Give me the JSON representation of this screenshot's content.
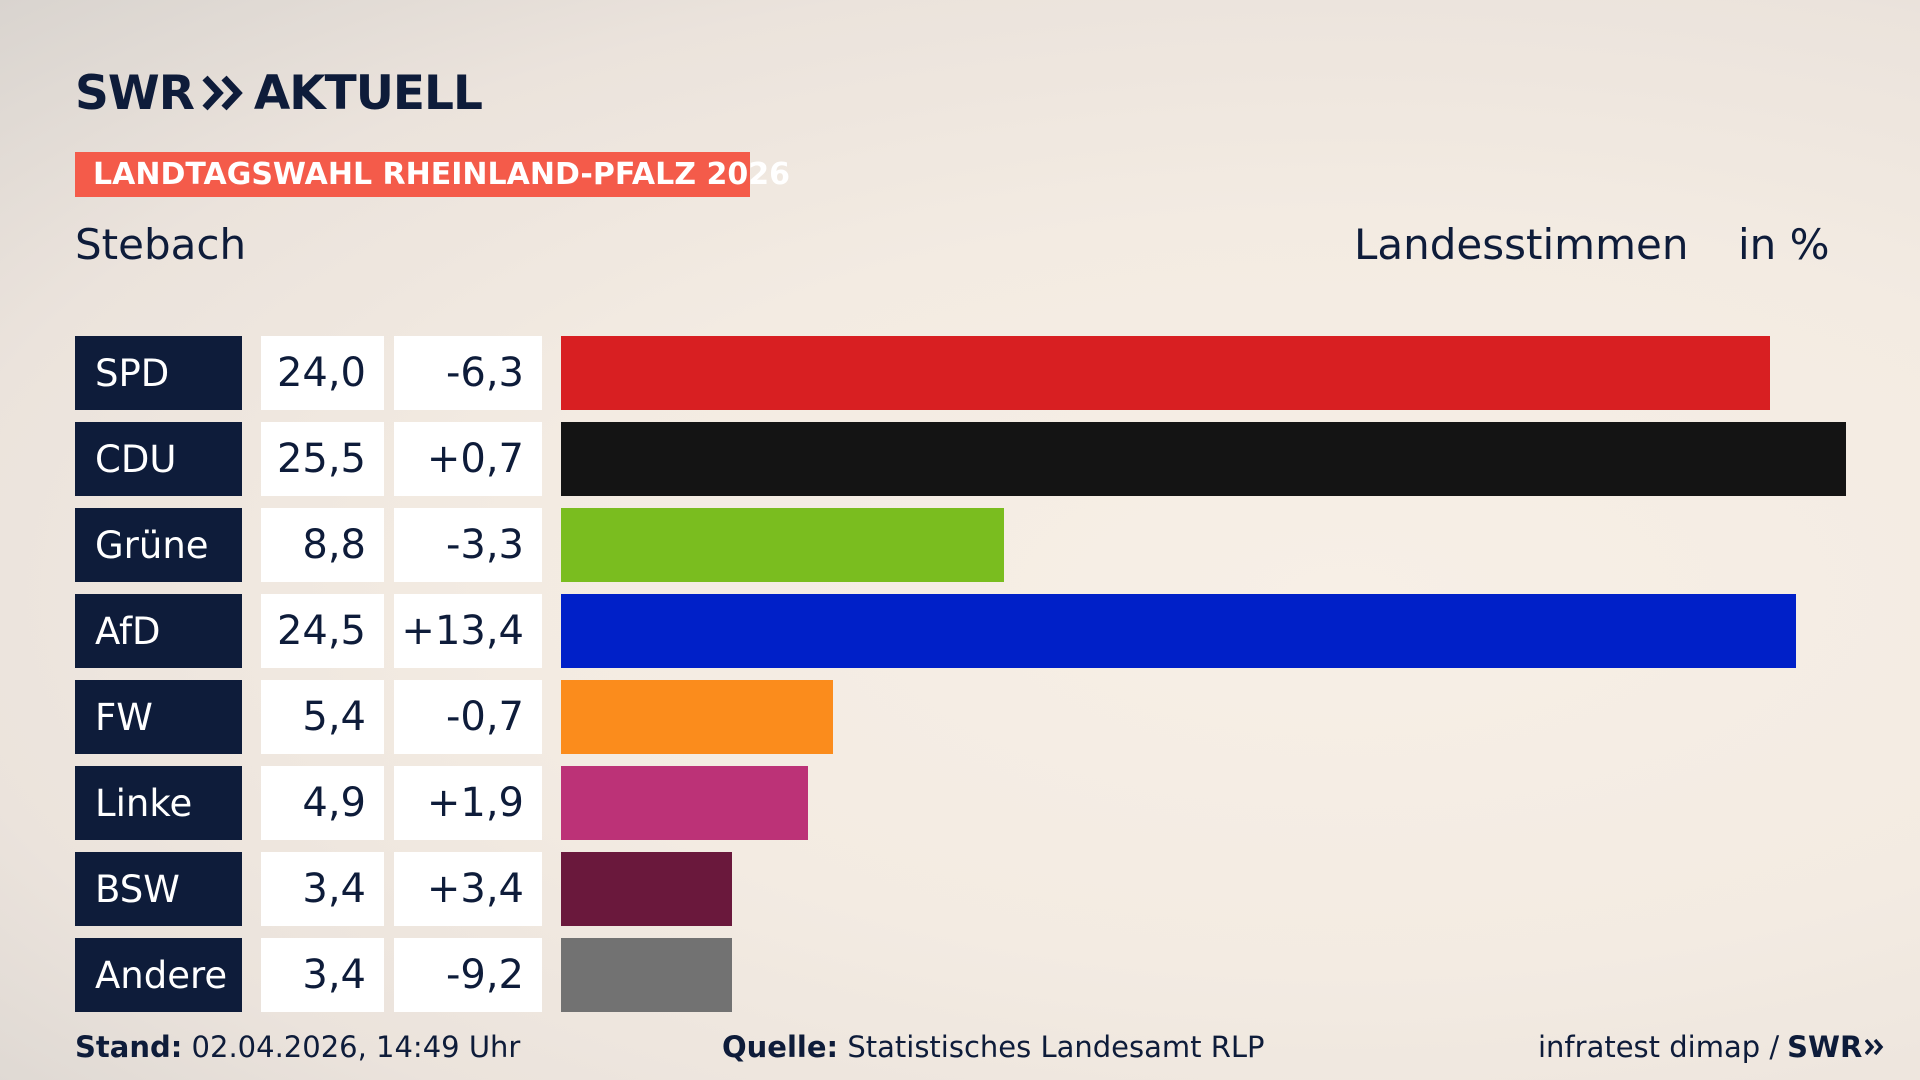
{
  "header": {
    "logo_swr": "SWR",
    "logo_aktuell": "AKTUELL",
    "subtitle": "LANDTAGSWAHL RHEINLAND-PFALZ 2026",
    "location": "Stebach",
    "measure": "Landesstimmen",
    "unit": "in %"
  },
  "colors": {
    "brand_navy": "#0e1c3a",
    "badge_red": "#f45b4a"
  },
  "chart_data": {
    "type": "bar",
    "orientation": "horizontal",
    "categories": [
      "SPD",
      "CDU",
      "Grüne",
      "AfD",
      "FW",
      "Linke",
      "BSW",
      "Andere"
    ],
    "values": [
      24.0,
      25.5,
      8.8,
      24.5,
      5.4,
      4.9,
      3.4,
      3.4
    ],
    "value_labels": [
      "24,0",
      "25,5",
      "8,8",
      "24,5",
      "5,4",
      "4,9",
      "3,4",
      "3,4"
    ],
    "changes": [
      -6.3,
      0.7,
      -3.3,
      13.4,
      -0.7,
      1.9,
      3.4,
      -9.2
    ],
    "change_labels": [
      "-6,3",
      "+0,7",
      "-3,3",
      "+13,4",
      "-0,7",
      "+1,9",
      "+3,4",
      "-9,2"
    ],
    "colors": [
      "#d81f22",
      "#141414",
      "#7abd1f",
      "#0020c8",
      "#fb8c1c",
      "#bc3277",
      "#6a183c",
      "#727272"
    ],
    "xlim": [
      0,
      25.5
    ],
    "grid": false
  },
  "footer": {
    "stand_label": "Stand:",
    "stand_value": "02.04.2026, 14:49 Uhr",
    "quelle_label": "Quelle:",
    "quelle_value": "Statistisches Landesamt RLP",
    "credit": "infratest dimap /",
    "credit_logo": "SWR"
  }
}
